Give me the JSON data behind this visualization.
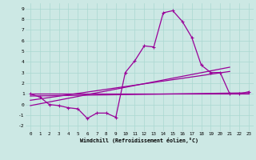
{
  "xlabel": "Windchill (Refroidissement éolien,°C)",
  "bg_color": "#cce8e4",
  "line_color": "#990099",
  "x_data": [
    0,
    1,
    2,
    3,
    4,
    5,
    6,
    7,
    8,
    9,
    10,
    11,
    12,
    13,
    14,
    15,
    16,
    17,
    18,
    19,
    20,
    21,
    22,
    23
  ],
  "scatter_y": [
    1.0,
    0.7,
    0.0,
    -0.1,
    -0.3,
    -0.4,
    -1.3,
    -0.8,
    -0.8,
    -1.2,
    3.0,
    4.1,
    5.5,
    5.4,
    8.6,
    8.8,
    7.8,
    6.3,
    3.7,
    3.0,
    3.0,
    1.0,
    1.0,
    1.2
  ],
  "trend1_x": [
    0,
    23
  ],
  "trend1_y": [
    1.0,
    1.0
  ],
  "trend2_x": [
    0,
    23
  ],
  "trend2_y": [
    0.8,
    1.1
  ],
  "trend3_x": [
    0,
    21
  ],
  "trend3_y": [
    0.4,
    3.1
  ],
  "trend4_x": [
    0,
    21
  ],
  "trend4_y": [
    -0.1,
    3.5
  ],
  "ylim": [
    -2.5,
    9.5
  ],
  "xlim": [
    -0.5,
    23.5
  ],
  "yticks": [
    -2,
    -1,
    0,
    1,
    2,
    3,
    4,
    5,
    6,
    7,
    8,
    9
  ],
  "xticks": [
    0,
    1,
    2,
    3,
    4,
    5,
    6,
    7,
    8,
    9,
    10,
    11,
    12,
    13,
    14,
    15,
    16,
    17,
    18,
    19,
    20,
    21,
    22,
    23
  ],
  "xtick_labels": [
    "0",
    "1",
    "2",
    "3",
    "4",
    "5",
    "6",
    "7",
    "8",
    "9",
    "10",
    "11",
    "12",
    "13",
    "14",
    "15",
    "16",
    "17",
    "18",
    "19",
    "20",
    "21",
    "22",
    "23"
  ],
  "ytick_labels": [
    "-2",
    "-1",
    "0",
    "1",
    "2",
    "3",
    "4",
    "5",
    "6",
    "7",
    "8",
    "9"
  ],
  "grid_color": "#aad8d0"
}
